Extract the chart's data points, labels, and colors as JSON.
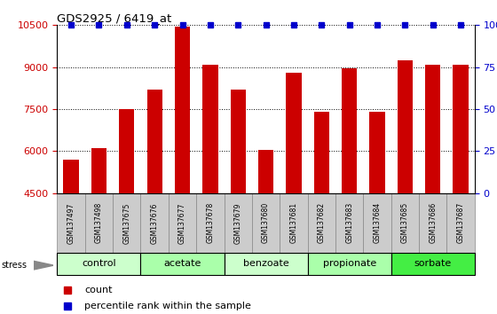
{
  "title": "GDS2925 / 6419_at",
  "samples": [
    "GSM137497",
    "GSM137498",
    "GSM137675",
    "GSM137676",
    "GSM137677",
    "GSM137678",
    "GSM137679",
    "GSM137680",
    "GSM137681",
    "GSM137682",
    "GSM137683",
    "GSM137684",
    "GSM137685",
    "GSM137686",
    "GSM137687"
  ],
  "counts": [
    5700,
    6100,
    7500,
    8200,
    10450,
    9100,
    8200,
    6050,
    8800,
    7400,
    8950,
    7400,
    9250,
    9100,
    9100
  ],
  "ylim_min": 4500,
  "ylim_max": 10500,
  "yticks": [
    4500,
    6000,
    7500,
    9000,
    10500
  ],
  "right_yticks": [
    0,
    25,
    50,
    75,
    100
  ],
  "groups": [
    {
      "label": "control",
      "start": 0,
      "end": 3,
      "color": "#ccffcc"
    },
    {
      "label": "acetate",
      "start": 3,
      "end": 6,
      "color": "#aaffaa"
    },
    {
      "label": "benzoate",
      "start": 6,
      "end": 9,
      "color": "#ccffcc"
    },
    {
      "label": "propionate",
      "start": 9,
      "end": 12,
      "color": "#aaffaa"
    },
    {
      "label": "sorbate",
      "start": 12,
      "end": 15,
      "color": "#44ee44"
    }
  ],
  "bar_color": "#cc0000",
  "dot_color": "#0000cc",
  "bar_width": 0.55,
  "background_color": "#ffffff",
  "xlabel_box_color": "#cccccc",
  "legend_count_color": "#cc0000",
  "legend_pct_color": "#0000cc",
  "ylabel_color": "#cc0000",
  "right_ylabel_color": "#0000cc"
}
